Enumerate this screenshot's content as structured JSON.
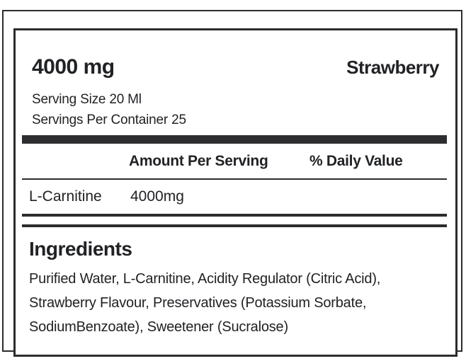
{
  "label": {
    "dosage": "4000 mg",
    "flavor": "Strawberry",
    "serving_size": "Serving Size 20 Ml",
    "servings_per_container": "Servings Per Container 25",
    "table": {
      "headers": {
        "amount": "Amount Per Serving",
        "daily_value": "% Daily Value"
      },
      "rows": [
        {
          "name": "L-Carnitine",
          "amount": "4000mg",
          "daily_value": ""
        }
      ]
    },
    "ingredients": {
      "title": "Ingredients",
      "lines": [
        "Purified Water, L-Carnitine, Acidity Regulator (Citric Acid),",
        "Strawberry Flavour, Preservatives (Potassium Sorbate,",
        "SodiumBenzoate), Sweetener (Sucralose)"
      ]
    },
    "colors": {
      "ink": "#212225",
      "rule": "#2b2c2e",
      "bar": "#2e2e30",
      "background": "#ffffff"
    }
  }
}
